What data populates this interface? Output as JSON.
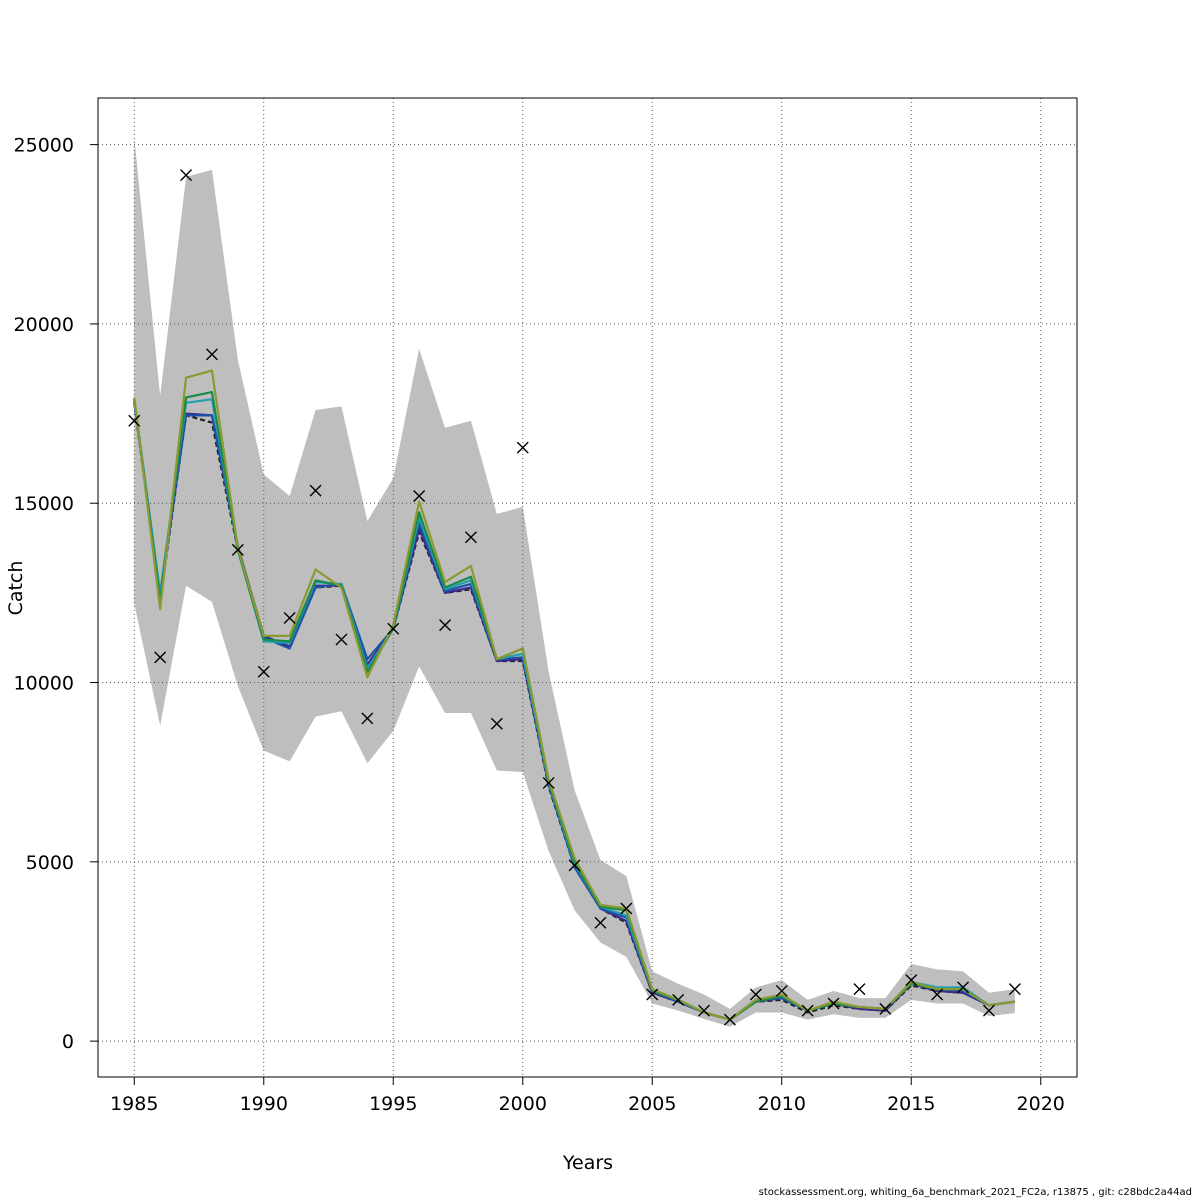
{
  "chart_data": {
    "type": "line",
    "title": "",
    "xlabel": "Years",
    "ylabel": "Catch",
    "xlim": [
      1983.6,
      2021.4
    ],
    "ylim": [
      -1000,
      26300
    ],
    "x_ticks": [
      1985,
      1990,
      1995,
      2000,
      2005,
      2010,
      2015,
      2020
    ],
    "y_ticks": [
      0,
      5000,
      10000,
      15000,
      20000,
      25000
    ],
    "grid": true,
    "legend": "none",
    "years": [
      1985,
      1986,
      1987,
      1988,
      1989,
      1990,
      1991,
      1992,
      1993,
      1994,
      1995,
      1996,
      1997,
      1998,
      1999,
      2000,
      2001,
      2002,
      2003,
      2004,
      2005,
      2006,
      2007,
      2008,
      2009,
      2010,
      2011,
      2012,
      2013,
      2014,
      2015,
      2016,
      2017,
      2018,
      2019
    ],
    "band_upper": [
      25200,
      18000,
      24100,
      24300,
      19000,
      15800,
      15200,
      17600,
      17700,
      14500,
      15700,
      19300,
      17100,
      17300,
      14700,
      14900,
      10300,
      7000,
      5050,
      4600,
      1950,
      1600,
      1300,
      900,
      1500,
      1700,
      1150,
      1400,
      1200,
      1200,
      2150,
      2000,
      1950,
      1350,
      1450
    ],
    "band_lower": [
      12200,
      8800,
      12700,
      12250,
      9900,
      8100,
      7800,
      9050,
      9200,
      7750,
      8650,
      10450,
      9150,
      9150,
      7550,
      7500,
      5300,
      3650,
      2750,
      2350,
      1050,
      850,
      620,
      400,
      800,
      800,
      600,
      750,
      650,
      650,
      1150,
      1050,
      1050,
      700,
      780
    ],
    "series": [
      {
        "color": "#222222",
        "dashed": true,
        "values": [
          17800,
          12300,
          17450,
          17250,
          13700,
          11300,
          11000,
          12650,
          12700,
          10500,
          11500,
          14200,
          12500,
          12600,
          10600,
          10600,
          7100,
          4850,
          3700,
          3300,
          1350,
          1100,
          800,
          600,
          1100,
          1150,
          800,
          1000,
          900,
          850,
          1550,
          1400,
          1350,
          1000,
          1100
        ]
      },
      {
        "color": "#3a2a8c",
        "dashed": false,
        "values": [
          17850,
          12400,
          17500,
          17450,
          13800,
          11300,
          11000,
          12700,
          12700,
          10500,
          11500,
          14300,
          12500,
          12650,
          10600,
          10650,
          7150,
          4900,
          3700,
          3350,
          1350,
          1100,
          800,
          600,
          1100,
          1200,
          850,
          1050,
          900,
          850,
          1600,
          1400,
          1350,
          1000,
          1100
        ]
      },
      {
        "color": "#1f4fa8",
        "dashed": false,
        "values": [
          17850,
          12450,
          17450,
          17450,
          13800,
          11250,
          10950,
          12650,
          12750,
          10650,
          11500,
          14450,
          12550,
          12750,
          10650,
          10700,
          7200,
          4850,
          3700,
          3450,
          1400,
          1100,
          800,
          600,
          1150,
          1200,
          850,
          1050,
          950,
          900,
          1650,
          1450,
          1400,
          1000,
          1100
        ]
      },
      {
        "color": "#20a0b0",
        "dashed": false,
        "values": [
          17900,
          12500,
          17800,
          17900,
          13700,
          11150,
          11100,
          12800,
          12750,
          10400,
          11500,
          14600,
          12600,
          12850,
          10650,
          10800,
          7200,
          4950,
          3750,
          3500,
          1400,
          1150,
          800,
          600,
          1150,
          1250,
          850,
          1050,
          950,
          900,
          1650,
          1500,
          1500,
          1000,
          1100
        ]
      },
      {
        "color": "#1a8a4a",
        "dashed": false,
        "values": [
          17900,
          12300,
          17950,
          18100,
          13700,
          11200,
          11150,
          12850,
          12700,
          10300,
          11500,
          14750,
          12650,
          12950,
          10650,
          10950,
          7250,
          5000,
          3750,
          3650,
          1400,
          1150,
          800,
          600,
          1100,
          1250,
          850,
          1050,
          950,
          900,
          1600,
          1450,
          1450,
          1000,
          1100
        ]
      },
      {
        "color": "#8a9a30",
        "dashed": false,
        "values": [
          17950,
          12050,
          18500,
          18700,
          13750,
          11300,
          11300,
          13150,
          12650,
          10150,
          11600,
          15050,
          12800,
          13250,
          10650,
          10950,
          7300,
          5100,
          3800,
          3700,
          1450,
          1150,
          800,
          600,
          1150,
          1300,
          850,
          1100,
          950,
          900,
          1650,
          1450,
          1450,
          1000,
          1100
        ]
      }
    ],
    "observations": {
      "x": [
        1985,
        1986,
        1987,
        1988,
        1989,
        1990,
        1991,
        1992,
        1993,
        1994,
        1995,
        1996,
        1997,
        1998,
        1999,
        2000,
        2001,
        2002,
        2003,
        2004,
        2005,
        2006,
        2007,
        2008,
        2009,
        2010,
        2011,
        2012,
        2013,
        2014,
        2015,
        2016,
        2017,
        2018,
        2019
      ],
      "y": [
        17300,
        10700,
        24150,
        19150,
        13700,
        10300,
        11800,
        15350,
        11200,
        9000,
        11500,
        15200,
        11600,
        14050,
        8850,
        16550,
        7200,
        4900,
        3300,
        3700,
        1300,
        1150,
        850,
        600,
        1300,
        1400,
        850,
        1050,
        1450,
        900,
        1700,
        1300,
        1500,
        850,
        1450
      ]
    },
    "band_color": "#bebebe",
    "marker": "x"
  },
  "footer": "stockassessment.org, whiting_6a_benchmark_2021_FC2a, r13875 , git: c28bdc2a44ad"
}
